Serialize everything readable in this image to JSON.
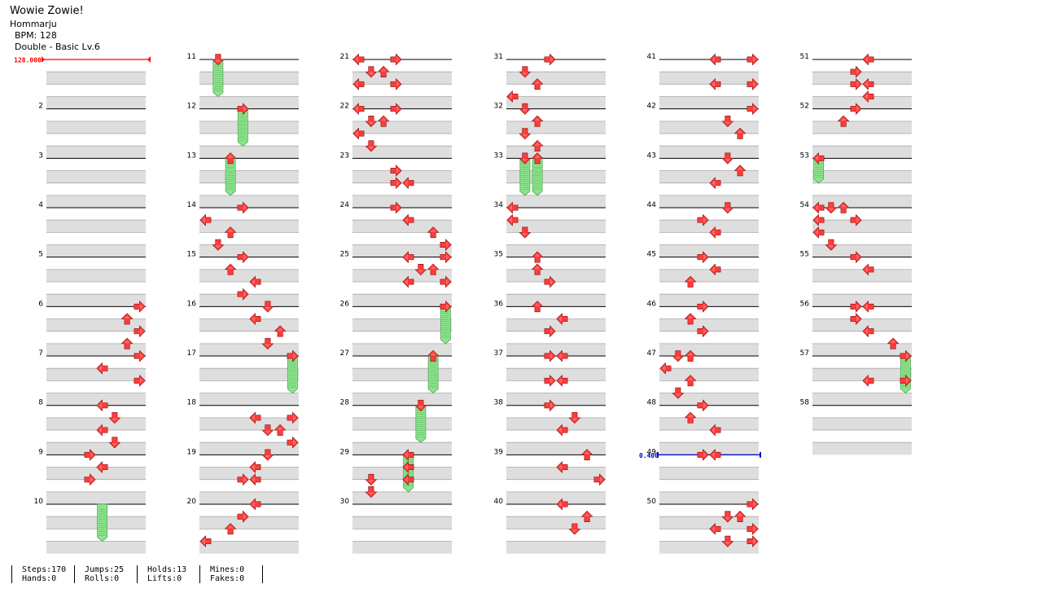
{
  "song": {
    "title": "Wowie Zowie!",
    "artist": "Hommarju",
    "bpm_label": "BPM: 128",
    "difficulty_label": "Double - Basic  Lv.6"
  },
  "markers": {
    "bpm_change": "128.000",
    "stop": "0.400"
  },
  "stats": {
    "steps": "Steps:170",
    "hands": "Hands:0",
    "jumps": "Jumps:25",
    "rolls": "Rolls:0",
    "holds": "Holds:13",
    "lifts": "Lifts:0",
    "mines": "Mines:0",
    "fakes": "Fakes:0"
  },
  "colors": {
    "arrow": "#ff3b3b",
    "hold": "#8de58d",
    "bpm_marker": "#ff0000",
    "stop_marker": "#0000cc",
    "stripe": "#dedede"
  },
  "chart_data": {
    "type": "table",
    "mode": "Double (8 panels: L D U R L D U R)",
    "measure_numbers": [
      "2",
      "3",
      "4",
      "5",
      "6",
      "7",
      "8",
      "9",
      "10",
      "11",
      "12",
      "13",
      "14",
      "15",
      "16",
      "17",
      "18",
      "19",
      "20",
      "21",
      "22",
      "23",
      "24",
      "25",
      "26",
      "27",
      "28",
      "29",
      "30",
      "31",
      "32",
      "33",
      "34",
      "35",
      "36",
      "37",
      "38",
      "39",
      "40",
      "41",
      "42",
      "43",
      "44",
      "45",
      "46",
      "47",
      "48",
      "49",
      "50",
      "51",
      "52",
      "53",
      "54",
      "55",
      "56",
      "57",
      "58"
    ],
    "notes": [
      [
        6,
        0,
        7
      ],
      [
        6,
        1,
        6
      ],
      [
        6,
        2,
        7
      ],
      [
        6,
        3,
        6
      ],
      [
        7,
        0,
        7
      ],
      [
        7,
        1,
        4
      ],
      [
        7,
        2,
        7
      ],
      [
        8,
        0,
        4
      ],
      [
        8,
        1,
        5
      ],
      [
        8,
        2,
        4
      ],
      [
        8,
        3,
        5
      ],
      [
        9,
        0,
        3
      ],
      [
        9,
        1,
        4
      ],
      [
        9,
        2,
        3
      ],
      [
        11,
        0,
        1
      ],
      [
        12,
        0,
        3
      ],
      [
        13,
        0,
        2
      ],
      [
        14,
        0,
        3
      ],
      [
        14,
        1,
        0
      ],
      [
        14,
        2,
        2
      ],
      [
        14,
        3,
        1
      ],
      [
        15,
        0,
        3
      ],
      [
        15,
        1,
        2
      ],
      [
        15,
        2,
        4
      ],
      [
        15,
        3,
        3
      ],
      [
        16,
        0,
        5
      ],
      [
        16,
        1,
        4
      ],
      [
        16,
        2,
        6
      ],
      [
        16,
        3,
        5
      ],
      [
        17,
        0,
        7
      ],
      [
        18,
        1,
        4
      ],
      [
        18,
        1,
        7
      ],
      [
        18,
        2,
        5
      ],
      [
        18,
        2,
        6
      ],
      [
        18,
        3,
        7
      ],
      [
        19,
        0,
        5
      ],
      [
        19,
        1,
        4
      ],
      [
        19,
        2,
        3
      ],
      [
        19,
        2,
        4
      ],
      [
        20,
        0,
        4
      ],
      [
        20,
        1,
        3
      ],
      [
        20,
        2,
        2
      ],
      [
        20,
        3,
        0
      ],
      [
        21,
        0,
        0
      ],
      [
        21,
        0,
        3
      ],
      [
        21,
        1,
        1
      ],
      [
        21,
        1,
        2
      ],
      [
        21,
        2,
        0
      ],
      [
        21,
        2,
        3
      ],
      [
        22,
        0,
        0
      ],
      [
        22,
        0,
        3
      ],
      [
        22,
        1,
        1
      ],
      [
        22,
        1,
        2
      ],
      [
        22,
        2,
        0
      ],
      [
        22,
        3,
        1
      ],
      [
        23,
        1,
        3
      ],
      [
        23,
        2,
        3
      ],
      [
        23,
        2,
        4
      ],
      [
        24,
        0,
        3
      ],
      [
        24,
        1,
        4
      ],
      [
        24,
        2,
        6
      ],
      [
        24,
        3,
        7
      ],
      [
        25,
        0,
        4
      ],
      [
        25,
        0,
        7
      ],
      [
        25,
        1,
        5
      ],
      [
        25,
        1,
        6
      ],
      [
        25,
        2,
        4
      ],
      [
        25,
        2,
        7
      ],
      [
        26,
        0,
        7
      ],
      [
        27,
        0,
        6
      ],
      [
        28,
        0,
        5
      ],
      [
        29,
        0,
        4
      ],
      [
        29,
        1,
        4
      ],
      [
        29,
        2,
        1
      ],
      [
        29,
        2,
        4
      ],
      [
        29,
        3,
        1
      ],
      [
        31,
        0,
        3
      ],
      [
        31,
        1,
        1
      ],
      [
        31,
        2,
        2
      ],
      [
        31,
        3,
        0
      ],
      [
        32,
        0,
        1
      ],
      [
        32,
        1,
        2
      ],
      [
        32,
        2,
        1
      ],
      [
        32,
        3,
        2
      ],
      [
        33,
        0,
        1
      ],
      [
        33,
        0,
        2
      ],
      [
        34,
        0,
        0
      ],
      [
        34,
        1,
        0
      ],
      [
        34,
        2,
        1
      ],
      [
        35,
        0,
        2
      ],
      [
        35,
        1,
        2
      ],
      [
        35,
        2,
        3
      ],
      [
        36,
        0,
        2
      ],
      [
        36,
        1,
        4
      ],
      [
        36,
        2,
        3
      ],
      [
        37,
        0,
        3
      ],
      [
        37,
        0,
        4
      ],
      [
        37,
        2,
        3
      ],
      [
        37,
        2,
        4
      ],
      [
        38,
        0,
        3
      ],
      [
        38,
        1,
        5
      ],
      [
        38,
        2,
        4
      ],
      [
        39,
        0,
        6
      ],
      [
        39,
        1,
        4
      ],
      [
        39,
        2,
        7
      ],
      [
        40,
        0,
        4
      ],
      [
        40,
        1,
        6
      ],
      [
        40,
        2,
        5
      ],
      [
        41,
        0,
        4
      ],
      [
        41,
        0,
        7
      ],
      [
        41,
        2,
        4
      ],
      [
        41,
        2,
        7
      ],
      [
        42,
        0,
        7
      ],
      [
        42,
        1,
        5
      ],
      [
        42,
        2,
        6
      ],
      [
        43,
        0,
        5
      ],
      [
        43,
        1,
        6
      ],
      [
        43,
        2,
        4
      ],
      [
        44,
        0,
        5
      ],
      [
        44,
        1,
        3
      ],
      [
        44,
        2,
        4
      ],
      [
        45,
        0,
        3
      ],
      [
        45,
        1,
        4
      ],
      [
        45,
        2,
        2
      ],
      [
        46,
        0,
        3
      ],
      [
        46,
        1,
        2
      ],
      [
        46,
        2,
        3
      ],
      [
        47,
        0,
        1
      ],
      [
        47,
        0,
        2
      ],
      [
        47,
        1,
        0
      ],
      [
        47,
        2,
        2
      ],
      [
        47,
        3,
        1
      ],
      [
        48,
        0,
        3
      ],
      [
        48,
        1,
        2
      ],
      [
        48,
        2,
        4
      ],
      [
        49,
        0,
        3
      ],
      [
        49,
        0,
        4
      ],
      [
        50,
        0,
        7
      ],
      [
        50,
        1,
        5
      ],
      [
        50,
        1,
        6
      ],
      [
        50,
        2,
        4
      ],
      [
        50,
        2,
        7
      ],
      [
        50,
        3,
        7
      ],
      [
        50,
        3,
        5
      ],
      [
        51,
        0,
        4
      ],
      [
        51,
        1,
        3
      ],
      [
        51,
        2,
        3
      ],
      [
        51,
        2,
        4
      ],
      [
        51,
        3,
        4
      ],
      [
        52,
        0,
        3
      ],
      [
        52,
        1,
        2
      ],
      [
        53,
        0,
        0
      ],
      [
        54,
        0,
        0
      ],
      [
        54,
        0,
        1
      ],
      [
        54,
        0,
        2
      ],
      [
        54,
        1,
        0
      ],
      [
        54,
        1,
        3
      ],
      [
        54,
        2,
        0
      ],
      [
        54,
        3,
        1
      ],
      [
        55,
        0,
        3
      ],
      [
        55,
        1,
        4
      ],
      [
        56,
        0,
        3
      ],
      [
        56,
        0,
        4
      ],
      [
        56,
        1,
        3
      ],
      [
        56,
        2,
        4
      ],
      [
        56,
        3,
        6
      ],
      [
        57,
        0,
        7
      ],
      [
        57,
        2,
        4
      ],
      [
        57,
        2,
        7
      ]
    ],
    "holds": [
      [
        10,
        0,
        10,
        3,
        4
      ],
      [
        11,
        0,
        11,
        3,
        1
      ],
      [
        12,
        0,
        12,
        3,
        3
      ],
      [
        13,
        0,
        13,
        3,
        2
      ],
      [
        17,
        0,
        17,
        3,
        7
      ],
      [
        26,
        0,
        26,
        3,
        7
      ],
      [
        27,
        0,
        27,
        3,
        6
      ],
      [
        28,
        0,
        28,
        3,
        5
      ],
      [
        29,
        0,
        29,
        3,
        4
      ],
      [
        33,
        0,
        33,
        3,
        1
      ],
      [
        33,
        0,
        33,
        3,
        2
      ],
      [
        53,
        0,
        53,
        2,
        0
      ],
      [
        57,
        0,
        57,
        3,
        7
      ]
    ]
  }
}
